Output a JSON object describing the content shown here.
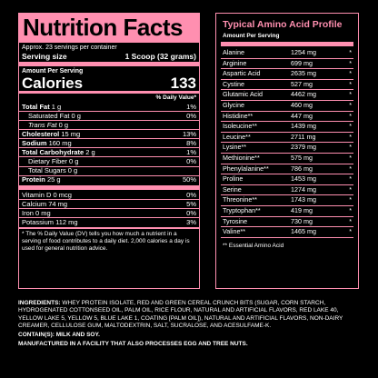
{
  "nutrition": {
    "title": "Nutrition Facts",
    "servings": "Approx. 23 servings per container",
    "serving_size_label": "Serving size",
    "serving_size_value": "1 Scoop (32 grams)",
    "amount_per_serving": "Amount Per Serving",
    "calories_label": "Calories",
    "calories_value": "133",
    "dv_header": "% Daily Value*",
    "rows": [
      {
        "label": "Total Fat",
        "amount": "1 g",
        "dv": "1%",
        "bold": true,
        "indent": 0
      },
      {
        "label": "Saturated Fat",
        "amount": "0 g",
        "dv": "0%",
        "bold": false,
        "indent": 1
      },
      {
        "label": "Trans Fat",
        "amount": "0 g",
        "dv": "",
        "bold": false,
        "indent": 1
      },
      {
        "label": "Cholesterol",
        "amount": "15 mg",
        "dv": "13%",
        "bold": true,
        "indent": 0
      },
      {
        "label": "Sodium",
        "amount": "160 mg",
        "dv": "8%",
        "bold": true,
        "indent": 0
      },
      {
        "label": "Total Carbohydrate",
        "amount": "2 g",
        "dv": "1%",
        "bold": true,
        "indent": 0
      },
      {
        "label": "Dietary Fiber",
        "amount": "0 g",
        "dv": "0%",
        "bold": false,
        "indent": 1
      },
      {
        "label": "Total Sugars",
        "amount": "0 g",
        "dv": "",
        "bold": false,
        "indent": 1
      },
      {
        "label": "Protein",
        "amount": "25 g",
        "dv": "50%",
        "bold": true,
        "indent": 0
      }
    ],
    "vitamins": [
      {
        "label": "Vitamin D",
        "amount": "0 mcg",
        "dv": "0%"
      },
      {
        "label": "Calcium",
        "amount": "74 mg",
        "dv": "5%"
      },
      {
        "label": "Iron",
        "amount": "0 mg",
        "dv": "0%"
      },
      {
        "label": "Potassium",
        "amount": "112 mg",
        "dv": "3%"
      }
    ],
    "footnote": "* The % Daily Value (DV) tells you how much a nutrient in a serving of food contributes to a daily diet. 2,000 calories a day is used for general nutrition advice."
  },
  "amino": {
    "title": "Typical Amino Acid Profile",
    "subtitle": "Amount Per Serving",
    "rows": [
      {
        "name": "Alanine",
        "value": "1254 mg"
      },
      {
        "name": "Arginine",
        "value": "699 mg"
      },
      {
        "name": "Aspartic Acid",
        "value": "2635 mg"
      },
      {
        "name": "Cystine",
        "value": "527 mg"
      },
      {
        "name": "Glutamic Acid",
        "value": "4462 mg"
      },
      {
        "name": "Glycine",
        "value": "460 mg"
      },
      {
        "name": "Histidine**",
        "value": "447 mg"
      },
      {
        "name": "Isoleucine**",
        "value": "1439 mg"
      },
      {
        "name": "Leucine**",
        "value": "2711 mg"
      },
      {
        "name": "Lysine**",
        "value": "2379 mg"
      },
      {
        "name": "Methionine**",
        "value": "575 mg"
      },
      {
        "name": "Phenylalanine**",
        "value": "786 mg"
      },
      {
        "name": "Proline",
        "value": "1453 mg"
      },
      {
        "name": "Serine",
        "value": "1274 mg"
      },
      {
        "name": "Threonine**",
        "value": "1743 mg"
      },
      {
        "name": "Tryptophan**",
        "value": "419 mg"
      },
      {
        "name": "Tyrosine",
        "value": "730 mg"
      },
      {
        "name": "Valine**",
        "value": "1465 mg"
      }
    ],
    "star": "*",
    "footnote": "** Essential Amino Acid"
  },
  "ingredients": {
    "label": "INGREDIENTS:",
    "text": "WHEY PROTEIN ISOLATE, RED AND GREEN CEREAL CRUNCH BITS (SUGAR, CORN STARCH, HYDROGENATED COTTONSEED OIL, PALM OIL, RICE FLOUR, NATURAL AND ARTIFICIAL FLAVORS, RED LAKE 40, YELLOW LAKE 5, YELLOW 5, BLUE LAKE 1, COATING [PALM OIL]), NATURAL AND ARTIFICIAL FLAVORS, NON-DAIRY CREAMER, CELLULOSE GUM, MALTODEXTRIN, SALT, SUCRALOSE, AND ACESULFAME-K.",
    "contains_label": "CONTAIN(S): MILK AND SOY.",
    "facility": "MANUFACTURED IN A FACILITY THAT ALSO PROCESSES EGG AND TREE NUTS."
  },
  "colors": {
    "accent": "#ff8fb0",
    "background": "#000000"
  }
}
